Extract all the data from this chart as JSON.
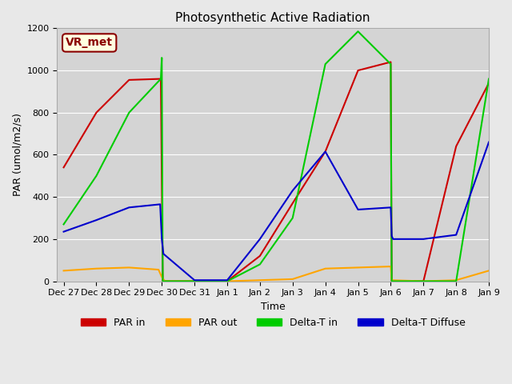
{
  "title": "Photosynthetic Active Radiation",
  "xlabel": "Time",
  "ylabel": "PAR (umol/m2/s)",
  "annotation": "VR_met",
  "ylim": [
    0,
    1200
  ],
  "xlim": [
    -0.2,
    13
  ],
  "x_ticks": [
    0,
    1,
    2,
    3,
    4,
    5,
    6,
    7,
    8,
    9,
    10,
    11,
    12,
    13
  ],
  "x_tick_labels": [
    "Dec 27",
    "Dec 28",
    "Dec 29",
    "Dec 30",
    "Dec 31",
    "Jan 1",
    "Jan 2",
    "Jan 3",
    "Jan 4",
    "Jan 5",
    "Jan 6",
    "Jan 7",
    "Jan 8",
    "Jan 9"
  ],
  "y_ticks": [
    0,
    200,
    400,
    600,
    800,
    1000,
    1200
  ],
  "series": {
    "PAR_in": {
      "color": "#cc0000",
      "linewidth": 1.5,
      "x": [
        0,
        1,
        2,
        2.97,
        3.03,
        4,
        5,
        6,
        7,
        8,
        9,
        10,
        10.03,
        11,
        12,
        13
      ],
      "y": [
        540,
        800,
        955,
        960,
        0,
        0,
        0,
        120,
        370,
        615,
        1000,
        1040,
        0,
        0,
        640,
        940
      ]
    },
    "PAR_out": {
      "color": "#ffa500",
      "linewidth": 1.5,
      "x": [
        0,
        1,
        2,
        2.9,
        3.0,
        3.1,
        4,
        5,
        6,
        7,
        8,
        9,
        10,
        10.03,
        11,
        12,
        13
      ],
      "y": [
        50,
        60,
        65,
        55,
        20,
        0,
        0,
        0,
        5,
        10,
        60,
        65,
        70,
        5,
        0,
        5,
        50
      ]
    },
    "Delta_T_in": {
      "color": "#00cc00",
      "linewidth": 1.5,
      "x": [
        0,
        1,
        2,
        2.97,
        3.0,
        3.03,
        4,
        5,
        6,
        7,
        8,
        9,
        10,
        10.03,
        11,
        12,
        13
      ],
      "y": [
        270,
        500,
        800,
        960,
        1060,
        0,
        0,
        0,
        80,
        300,
        1030,
        1185,
        1030,
        0,
        0,
        0,
        960
      ]
    },
    "Delta_T_Diffuse": {
      "color": "#0000cc",
      "linewidth": 1.5,
      "x": [
        0,
        1,
        2,
        2.95,
        3.0,
        3.05,
        4,
        5,
        6,
        7,
        8,
        9,
        10,
        10.03,
        10.07,
        11,
        12,
        13
      ],
      "y": [
        235,
        290,
        350,
        365,
        200,
        130,
        5,
        5,
        200,
        430,
        615,
        340,
        350,
        215,
        200,
        200,
        220,
        660
      ]
    }
  },
  "legend": [
    {
      "label": "PAR in",
      "color": "#cc0000"
    },
    {
      "label": "PAR out",
      "color": "#ffa500"
    },
    {
      "label": "Delta-T in",
      "color": "#00cc00"
    },
    {
      "label": "Delta-T Diffuse",
      "color": "#0000cc"
    }
  ],
  "fig_facecolor": "#e8e8e8",
  "ax_facecolor": "#d4d4d4",
  "grid_color": "#ffffff",
  "title_fontsize": 11,
  "label_fontsize": 9,
  "tick_fontsize": 8,
  "legend_fontsize": 9
}
